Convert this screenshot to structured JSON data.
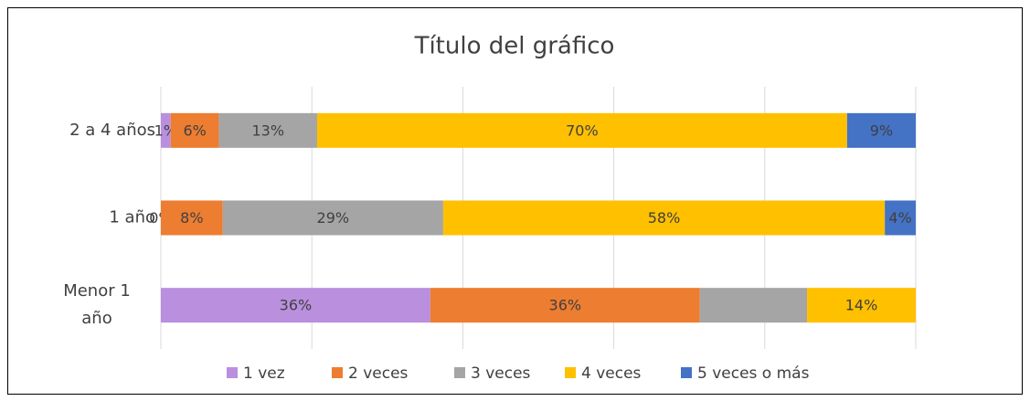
{
  "chart_data": {
    "type": "stacked-bar-horizontal",
    "title": "Título del gráfico",
    "categories": [
      "Menor 1 año",
      "1 año",
      "2 a 4 años"
    ],
    "series": [
      {
        "name": "1 vez",
        "color": "#b98fde",
        "values": [
          35.7,
          0,
          1.3
        ],
        "value_labels": [
          "36%",
          "0%",
          "1%"
        ]
      },
      {
        "name": "2 veces",
        "color": "#ed7d31",
        "values": [
          35.7,
          8.2,
          6.4
        ],
        "value_labels": [
          "36%",
          "8%",
          "6%"
        ]
      },
      {
        "name": "3 veces",
        "color": "#a5a5a5",
        "values": [
          14.2,
          29.2,
          13
        ],
        "value_labels": [
          null,
          "29%",
          "13%"
        ]
      },
      {
        "name": "4 veces",
        "color": "#ffc000",
        "values": [
          14.4,
          58.5,
          70.2
        ],
        "value_labels": [
          "14%",
          "58%",
          "70%"
        ]
      },
      {
        "name": "5 veces o más",
        "color": "#4472c4",
        "values": [
          0,
          4.1,
          9.1
        ],
        "value_labels": [
          null,
          "4%",
          "9%"
        ]
      }
    ],
    "xlim": [
      0,
      100
    ],
    "xticks": [
      0,
      20,
      40,
      60,
      80,
      100
    ],
    "grid": true,
    "legend": "bottom"
  }
}
